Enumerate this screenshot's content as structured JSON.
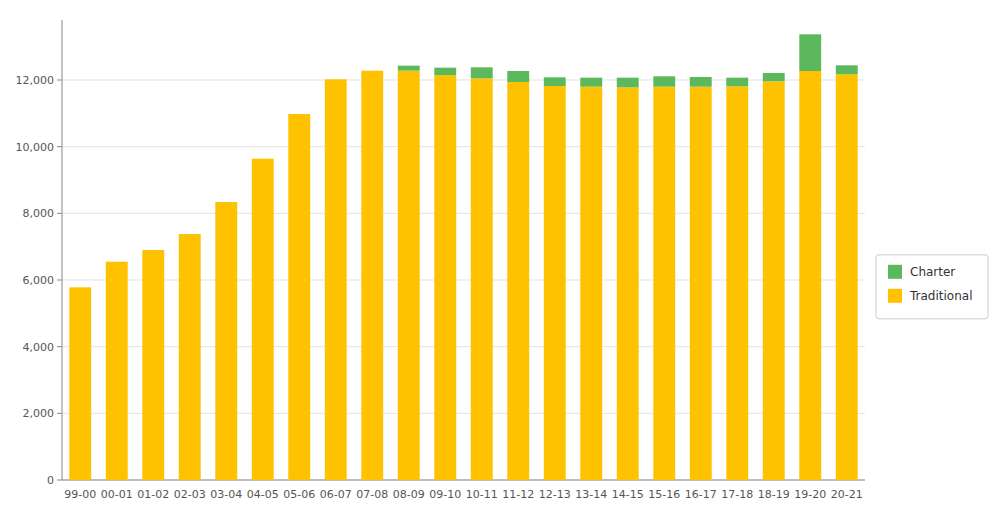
{
  "chart_data": {
    "type": "bar",
    "stacked": true,
    "grid": true,
    "legend": "right",
    "categories": [
      "99-00",
      "00-01",
      "01-02",
      "02-03",
      "03-04",
      "04-05",
      "05-06",
      "06-07",
      "07-08",
      "08-09",
      "09-10",
      "10-11",
      "11-12",
      "12-13",
      "13-14",
      "14-15",
      "15-16",
      "16-17",
      "17-18",
      "18-19",
      "19-20",
      "20-21"
    ],
    "series": [
      {
        "name": "Traditional",
        "color": "#FFC200",
        "values": [
          5780,
          6550,
          6900,
          7380,
          8340,
          9640,
          10980,
          12020,
          12280,
          12280,
          12150,
          12050,
          11940,
          11820,
          11800,
          11780,
          11800,
          11800,
          11810,
          11960,
          12270,
          12170
        ]
      },
      {
        "name": "Charter",
        "color": "#5CB85C",
        "values": [
          0,
          0,
          0,
          0,
          0,
          0,
          0,
          0,
          0,
          150,
          220,
          330,
          330,
          260,
          270,
          290,
          310,
          290,
          260,
          250,
          1100,
          270
        ]
      }
    ],
    "ylim": [
      0,
      13800
    ],
    "yticks": [
      0,
      {
        "value": 2000,
        "label": "2,000"
      },
      {
        "value": 4000,
        "label": "4,000"
      },
      {
        "value": 6000,
        "label": "6,000"
      },
      {
        "value": 8000,
        "label": "8,000"
      },
      {
        "value": 10000,
        "label": "10,000"
      },
      {
        "value": 12000,
        "label": "12,000"
      }
    ]
  }
}
